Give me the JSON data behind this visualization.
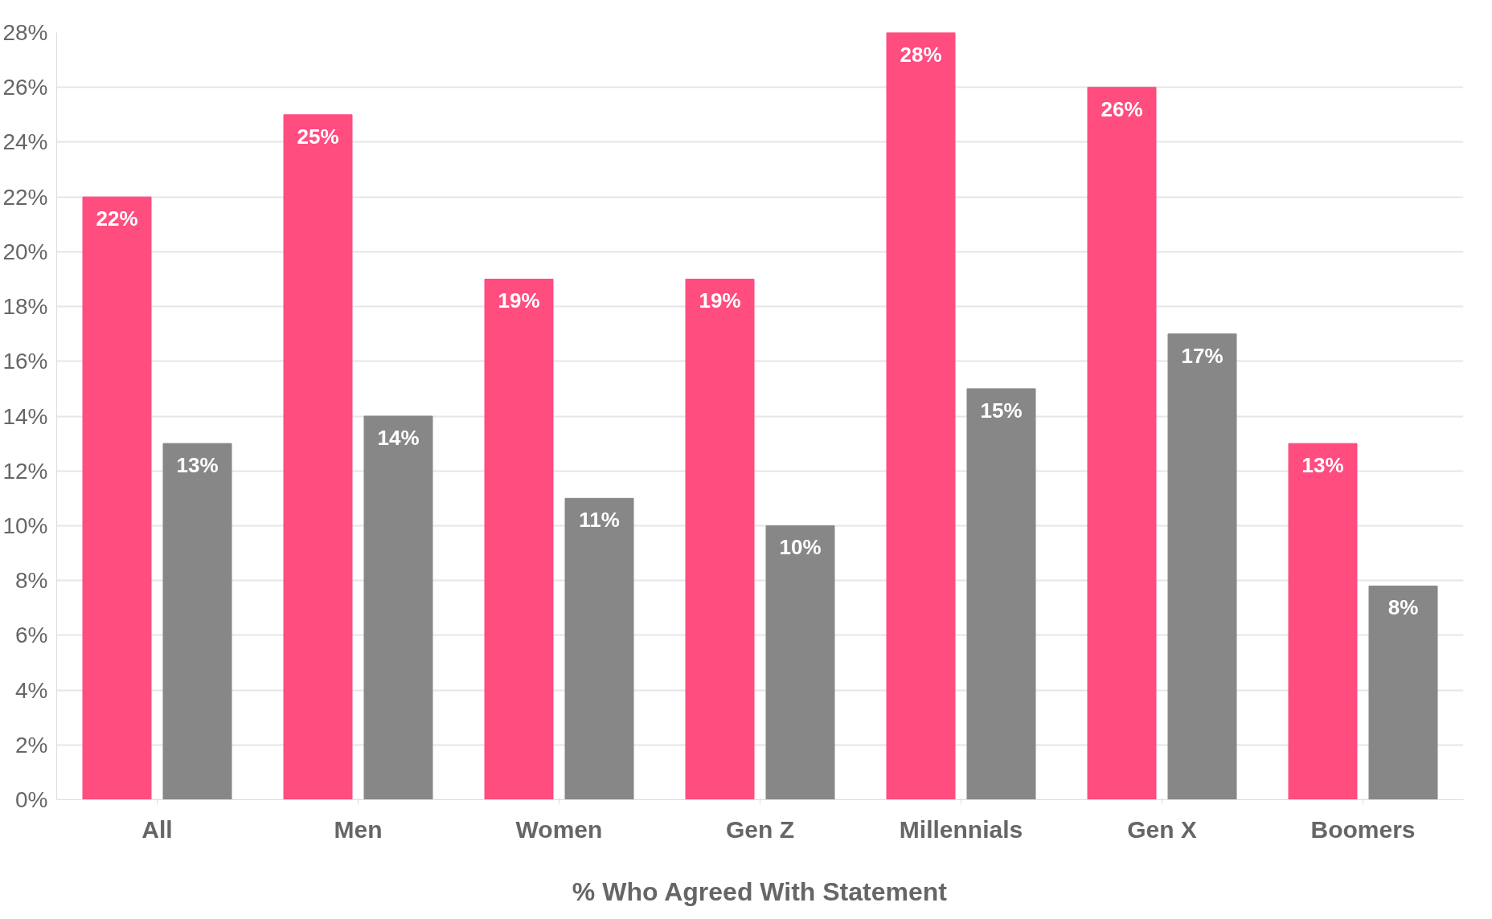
{
  "chart_data": {
    "type": "bar",
    "xlabel": "% Who Agreed With Statement",
    "categories": [
      "All",
      "Men",
      "Women",
      "Gen Z",
      "Millennials",
      "Gen X",
      "Boomers"
    ],
    "series": [
      {
        "color": "#ff4d80",
        "values": [
          22,
          25,
          19,
          19,
          28,
          26,
          13
        ],
        "value_labels": [
          "22%",
          "25%",
          "19%",
          "19%",
          "28%",
          "26%",
          "13%"
        ]
      },
      {
        "color": "#878787",
        "values": [
          13,
          14,
          11,
          10,
          15,
          17,
          7.8
        ],
        "value_labels": [
          "13%",
          "14%",
          "11%",
          "10%",
          "15%",
          "17%",
          "8%"
        ]
      }
    ],
    "ylim": [
      0,
      28
    ],
    "yticks": [
      {
        "value": 0,
        "label": "0%"
      },
      {
        "value": 2,
        "label": "2%"
      },
      {
        "value": 4,
        "label": "4%"
      },
      {
        "value": 6,
        "label": "6%"
      },
      {
        "value": 8,
        "label": "8%"
      },
      {
        "value": 10,
        "label": "10%"
      },
      {
        "value": 12,
        "label": "12%"
      },
      {
        "value": 14,
        "label": "14%"
      },
      {
        "value": 16,
        "label": "16%"
      },
      {
        "value": 18,
        "label": "18%"
      },
      {
        "value": 20,
        "label": "20%"
      },
      {
        "value": 22,
        "label": "22%"
      },
      {
        "value": 24,
        "label": "24%"
      },
      {
        "value": 26,
        "label": "26%"
      },
      {
        "value": 28,
        "label": "28%"
      }
    ],
    "grid": "y"
  }
}
